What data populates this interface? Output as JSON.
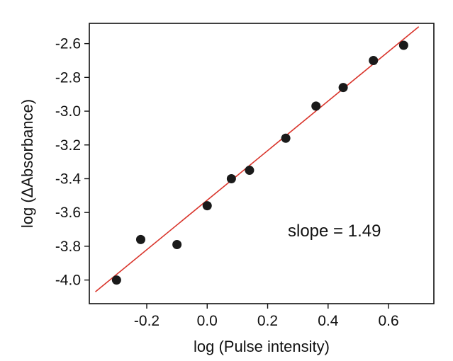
{
  "chart_data": {
    "type": "scatter",
    "title": "",
    "xlabel": "log (Pulse intensity)",
    "ylabel": "log (ΔAbsorbance)",
    "xlim": [
      -0.39,
      0.75
    ],
    "ylim": [
      -4.14,
      -2.48
    ],
    "x_ticks": [
      -0.2,
      0.0,
      0.2,
      0.4,
      0.6
    ],
    "x_tick_labels": [
      "-0.2",
      "0.0",
      "0.2",
      "0.4",
      "0.6"
    ],
    "y_ticks": [
      -4.0,
      -3.8,
      -3.6,
      -3.4,
      -3.2,
      -3.0,
      -2.8,
      -2.6
    ],
    "y_tick_labels": [
      "-4.0",
      "-3.8",
      "-3.6",
      "-3.4",
      "-3.2",
      "-3.0",
      "-2.8",
      "-2.6"
    ],
    "grid": false,
    "points": {
      "x": [
        -0.3,
        -0.22,
        -0.1,
        0.0,
        0.08,
        0.14,
        0.26,
        0.36,
        0.45,
        0.55,
        0.65
      ],
      "y": [
        -4.0,
        -3.76,
        -3.79,
        -3.56,
        -3.4,
        -3.35,
        -3.16,
        -2.97,
        -2.86,
        -2.7,
        -2.61
      ]
    },
    "fit_line": {
      "x": [
        -0.37,
        0.7
      ],
      "y": [
        -4.07,
        -2.5
      ],
      "color": "#d9342b"
    },
    "annotation": "slope = 1.49",
    "marker_color": "#1a1a1a"
  }
}
